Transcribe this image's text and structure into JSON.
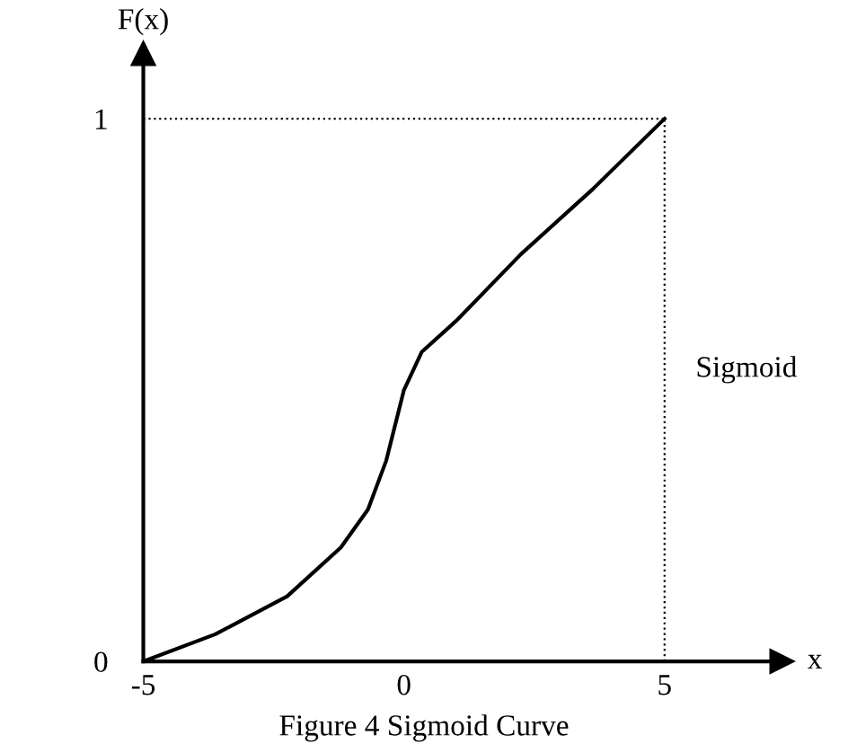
{
  "chart_data": {
    "type": "line",
    "xlabel": "x",
    "ylabel": "F(x)",
    "x": [
      -5,
      -3.62,
      -2.24,
      -1.21,
      -0.69,
      -0.34,
      0,
      0.34,
      1.03,
      2.24,
      3.62,
      5
    ],
    "series": [
      {
        "color": "#000000",
        "values": [
          0,
          0.05,
          0.12,
          0.21,
          0.28,
          0.37,
          0.5,
          0.57,
          0.63,
          0.75,
          0.87,
          1
        ]
      }
    ],
    "xlim": [
      -5,
      7.25
    ],
    "ylim": [
      0,
      1.12
    ],
    "xticks": [
      -5,
      0,
      5
    ],
    "yticks": [
      0,
      1
    ],
    "ref_lines": [
      {
        "axis": "x",
        "value": 5,
        "color": "#000000",
        "line_style": "dotted"
      },
      {
        "axis": "y",
        "value": 1,
        "color": "#000000",
        "line_style": "dotted"
      }
    ],
    "annotations": [
      "Sigmoid",
      "Figure 4 Sigmoid Curve"
    ],
    "grid": false,
    "legend": false,
    "marker": "none",
    "line_style": "solid"
  }
}
